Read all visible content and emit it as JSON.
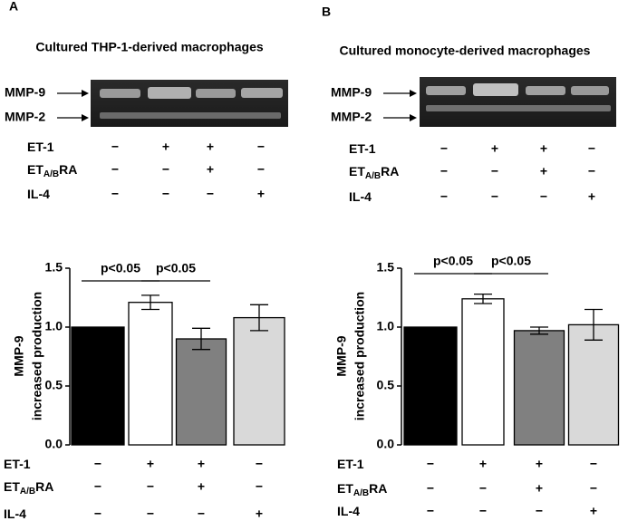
{
  "chart_data": [
    {
      "type": "bar",
      "panel": "A",
      "gel_title": "Cultured THP-1-derived macrophages",
      "gel_bands": [
        "MMP-9",
        "MMP-2"
      ],
      "ylabel": [
        "MMP-9",
        "increased production"
      ],
      "categories": [
        null,
        null,
        null,
        null
      ],
      "values": [
        1.0,
        1.21,
        0.9,
        1.08
      ],
      "errors": [
        0,
        0.06,
        0.09,
        0.11
      ],
      "colors": [
        "#000000",
        "#ffffff",
        "#808080",
        "#d9d9d9"
      ],
      "ylim": [
        0,
        1.5
      ],
      "yticks": [
        {
          "value": 0,
          "label": "0.0"
        },
        0.5,
        {
          "value": 1,
          "label": "1.0"
        },
        1.5
      ],
      "treatments": [
        {
          "name": [
            "ET-1"
          ],
          "signs": [
            "−",
            "+",
            "+",
            "−"
          ]
        },
        {
          "name": [
            "ET",
            "A/B",
            "RA"
          ],
          "signs": [
            "−",
            "−",
            "+",
            "−"
          ]
        },
        {
          "name": [
            "IL-4"
          ],
          "signs": [
            "−",
            "−",
            "−",
            "+"
          ]
        }
      ],
      "annotations": [
        {
          "text": "p<0.05",
          "from": 0,
          "to": 1
        },
        {
          "text": "p<0.05",
          "from": 1,
          "to": 2
        }
      ]
    },
    {
      "type": "bar",
      "panel": "B",
      "gel_title": "Cultured monocyte-derived macrophages",
      "gel_bands": [
        "MMP-9",
        "MMP-2"
      ],
      "ylabel": [
        "MMP-9",
        "increased production"
      ],
      "categories": [
        null,
        null,
        null,
        null
      ],
      "values": [
        1.0,
        1.24,
        0.97,
        1.02
      ],
      "errors": [
        0,
        0.04,
        0.03,
        0.13
      ],
      "colors": [
        "#000000",
        "#ffffff",
        "#808080",
        "#d9d9d9"
      ],
      "ylim": [
        0,
        1.5
      ],
      "yticks": [
        {
          "value": 0,
          "label": "0.0"
        },
        0.5,
        {
          "value": 1,
          "label": "1.0"
        },
        1.5
      ],
      "treatments": [
        {
          "name": [
            "ET-1"
          ],
          "signs": [
            "−",
            "+",
            "+",
            "−"
          ]
        },
        {
          "name": [
            "ET",
            "A/B",
            "RA"
          ],
          "signs": [
            "−",
            "−",
            "+",
            "−"
          ]
        },
        {
          "name": [
            "IL-4"
          ],
          "signs": [
            "−",
            "−",
            "−",
            "+"
          ]
        }
      ],
      "annotations": [
        {
          "text": "p<0.05",
          "from": 0,
          "to": 1
        },
        {
          "text": "p<0.05",
          "from": 1,
          "to": 2
        }
      ]
    }
  ]
}
